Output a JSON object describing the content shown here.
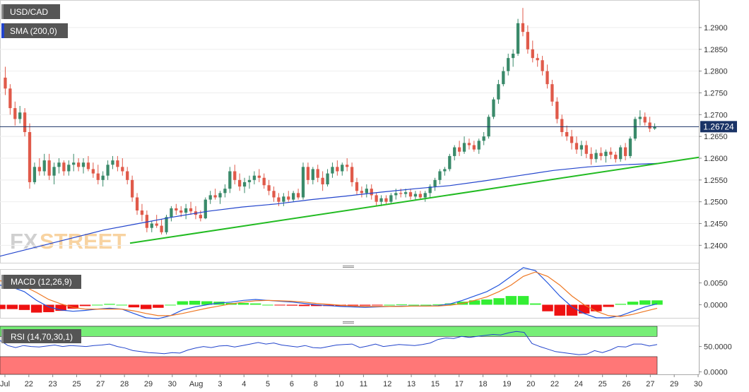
{
  "instrument": "USD/CAD",
  "indicators": {
    "sma": "SMA (200,0)",
    "macd": "MACD (12,26,9)",
    "rsi": "RSI (14,70,30,1)"
  },
  "watermark": {
    "fx": "FX",
    "street": "STREET"
  },
  "last_price": "1.26724",
  "colors": {
    "bull": "#3a8a6a",
    "bear": "#e05a4a",
    "sma": "#2244cc",
    "trend": "#22bb22",
    "macd_line": "#2255dd",
    "signal_line": "#ee7722",
    "hist_pos": "#33ee33",
    "hist_neg": "#ee1111",
    "rsi_over": "#77ee77",
    "rsi_under": "#ff7777"
  },
  "chart_data": [
    {
      "type": "candlestick",
      "x_ticks": [
        "Jul",
        "22",
        "23",
        "25",
        "27",
        "28",
        "29",
        "30",
        "Aug",
        "3",
        "4",
        "5",
        "6",
        "8",
        "10",
        "11",
        "12",
        "13",
        "15",
        "17",
        "18",
        "19",
        "20",
        "22",
        "24",
        "25",
        "26",
        "27",
        "29",
        "30"
      ],
      "y_ticks": [
        "1.2900",
        "1.2850",
        "1.2800",
        "1.2750",
        "1.2700",
        "1.2650",
        "1.2600",
        "1.2550",
        "1.2500",
        "1.2450",
        "1.2400"
      ],
      "ylim": [
        1.236,
        1.296
      ],
      "ohlc": [
        [
          1.2785,
          1.281,
          1.2745,
          1.276
        ],
        [
          1.276,
          1.277,
          1.27,
          1.2715
        ],
        [
          1.2715,
          1.273,
          1.2675,
          1.269
        ],
        [
          1.269,
          1.272,
          1.268,
          1.2705
        ],
        [
          1.2705,
          1.2715,
          1.265,
          1.266
        ],
        [
          1.266,
          1.268,
          1.253,
          1.2545
        ],
        [
          1.2545,
          1.259,
          1.254,
          1.258
        ],
        [
          1.258,
          1.26,
          1.256,
          1.257
        ],
        [
          1.257,
          1.261,
          1.256,
          1.2595
        ],
        [
          1.2595,
          1.261,
          1.255,
          1.256
        ],
        [
          1.256,
          1.259,
          1.254,
          1.258
        ],
        [
          1.258,
          1.26,
          1.2565,
          1.259
        ],
        [
          1.259,
          1.2595,
          1.256,
          1.257
        ],
        [
          1.257,
          1.2595,
          1.256,
          1.2585
        ],
        [
          1.2585,
          1.261,
          1.257,
          1.259
        ],
        [
          1.259,
          1.26,
          1.257,
          1.258
        ],
        [
          1.258,
          1.26,
          1.2565,
          1.259
        ],
        [
          1.259,
          1.2605,
          1.257,
          1.2575
        ],
        [
          1.2575,
          1.259,
          1.2555,
          1.2565
        ],
        [
          1.2565,
          1.2585,
          1.254,
          1.255
        ],
        [
          1.255,
          1.257,
          1.2535,
          1.256
        ],
        [
          1.256,
          1.2595,
          1.255,
          1.2585
        ],
        [
          1.2585,
          1.2605,
          1.2575,
          1.2595
        ],
        [
          1.2595,
          1.2605,
          1.257,
          1.258
        ],
        [
          1.258,
          1.26,
          1.256,
          1.257
        ],
        [
          1.257,
          1.258,
          1.254,
          1.255
        ],
        [
          1.255,
          1.256,
          1.25,
          1.251
        ],
        [
          1.251,
          1.252,
          1.247,
          1.248
        ],
        [
          1.248,
          1.2495,
          1.2455,
          1.247
        ],
        [
          1.247,
          1.248,
          1.243,
          1.244
        ],
        [
          1.244,
          1.2455,
          1.243,
          1.245
        ],
        [
          1.245,
          1.247,
          1.244,
          1.2445
        ],
        [
          1.2445,
          1.246,
          1.2425,
          1.243
        ],
        [
          1.243,
          1.247,
          1.2425,
          1.2465
        ],
        [
          1.2465,
          1.249,
          1.2455,
          1.2485
        ],
        [
          1.2485,
          1.2495,
          1.247,
          1.248
        ],
        [
          1.248,
          1.249,
          1.2465,
          1.2475
        ],
        [
          1.2475,
          1.2495,
          1.246,
          1.2485
        ],
        [
          1.2485,
          1.25,
          1.247,
          1.2478
        ],
        [
          1.2478,
          1.249,
          1.246,
          1.247
        ],
        [
          1.247,
          1.248,
          1.2455,
          1.2462
        ],
        [
          1.2462,
          1.251,
          1.246,
          1.2505
        ],
        [
          1.2505,
          1.2525,
          1.2495,
          1.2515
        ],
        [
          1.2515,
          1.253,
          1.2505,
          1.251
        ],
        [
          1.251,
          1.2525,
          1.2495,
          1.252
        ],
        [
          1.252,
          1.254,
          1.251,
          1.253
        ],
        [
          1.253,
          1.258,
          1.252,
          1.257
        ],
        [
          1.257,
          1.2585,
          1.254,
          1.255
        ],
        [
          1.255,
          1.2565,
          1.2525,
          1.2535
        ],
        [
          1.2535,
          1.2555,
          1.252,
          1.2545
        ],
        [
          1.2545,
          1.256,
          1.253,
          1.255
        ],
        [
          1.255,
          1.257,
          1.254,
          1.256
        ],
        [
          1.256,
          1.2575,
          1.2545,
          1.2555
        ],
        [
          1.2555,
          1.2565,
          1.253,
          1.2538
        ],
        [
          1.2538,
          1.255,
          1.2515,
          1.2525
        ],
        [
          1.2525,
          1.2535,
          1.25,
          1.251
        ],
        [
          1.251,
          1.252,
          1.249,
          1.25
        ],
        [
          1.25,
          1.252,
          1.249,
          1.2512
        ],
        [
          1.2512,
          1.2525,
          1.25,
          1.2505
        ],
        [
          1.2505,
          1.2525,
          1.25,
          1.252
        ],
        [
          1.252,
          1.253,
          1.2505,
          1.251
        ],
        [
          1.251,
          1.259,
          1.2505,
          1.258
        ],
        [
          1.258,
          1.259,
          1.254,
          1.255
        ],
        [
          1.255,
          1.258,
          1.254,
          1.2575
        ],
        [
          1.2575,
          1.2585,
          1.2545,
          1.2555
        ],
        [
          1.2555,
          1.257,
          1.2525,
          1.254
        ],
        [
          1.254,
          1.2575,
          1.2535,
          1.2565
        ],
        [
          1.2565,
          1.259,
          1.2555,
          1.258
        ],
        [
          1.258,
          1.2595,
          1.256,
          1.257
        ],
        [
          1.257,
          1.259,
          1.256,
          1.2585
        ],
        [
          1.2585,
          1.26,
          1.257,
          1.258
        ],
        [
          1.258,
          1.259,
          1.2535,
          1.2545
        ],
        [
          1.2545,
          1.2555,
          1.2515,
          1.2525
        ],
        [
          1.2525,
          1.2535,
          1.251,
          1.252
        ],
        [
          1.252,
          1.254,
          1.251,
          1.253
        ],
        [
          1.253,
          1.254,
          1.2505,
          1.2515
        ],
        [
          1.2515,
          1.252,
          1.249,
          1.25
        ],
        [
          1.25,
          1.2515,
          1.249,
          1.2508
        ],
        [
          1.2508,
          1.2515,
          1.2495,
          1.25
        ],
        [
          1.25,
          1.252,
          1.2495,
          1.2515
        ],
        [
          1.2515,
          1.253,
          1.2505,
          1.252
        ],
        [
          1.252,
          1.253,
          1.251,
          1.2518
        ],
        [
          1.2518,
          1.253,
          1.251,
          1.2522
        ],
        [
          1.2522,
          1.253,
          1.2505,
          1.2512
        ],
        [
          1.2512,
          1.2525,
          1.2505,
          1.2518
        ],
        [
          1.2518,
          1.2525,
          1.2505,
          1.251
        ],
        [
          1.251,
          1.2525,
          1.25,
          1.252
        ],
        [
          1.252,
          1.254,
          1.251,
          1.2535
        ],
        [
          1.2535,
          1.2555,
          1.2525,
          1.255
        ],
        [
          1.255,
          1.2575,
          1.254,
          1.257
        ],
        [
          1.257,
          1.258,
          1.256,
          1.2575
        ],
        [
          1.2575,
          1.261,
          1.257,
          1.2605
        ],
        [
          1.2605,
          1.263,
          1.2595,
          1.2625
        ],
        [
          1.2625,
          1.264,
          1.2605,
          1.2615
        ],
        [
          1.2615,
          1.265,
          1.261,
          1.2635
        ],
        [
          1.2635,
          1.2645,
          1.262,
          1.263
        ],
        [
          1.263,
          1.264,
          1.2615,
          1.262
        ],
        [
          1.262,
          1.2645,
          1.261,
          1.264
        ],
        [
          1.264,
          1.266,
          1.263,
          1.265
        ],
        [
          1.265,
          1.27,
          1.2645,
          1.2695
        ],
        [
          1.2695,
          1.274,
          1.269,
          1.2735
        ],
        [
          1.2735,
          1.278,
          1.2725,
          1.277
        ],
        [
          1.277,
          1.281,
          1.2765,
          1.28
        ],
        [
          1.28,
          1.284,
          1.279,
          1.283
        ],
        [
          1.283,
          1.285,
          1.281,
          1.284
        ],
        [
          1.284,
          1.292,
          1.2835,
          1.291
        ],
        [
          1.291,
          1.2945,
          1.288,
          1.289
        ],
        [
          1.289,
          1.2905,
          1.284,
          1.285
        ],
        [
          1.285,
          1.287,
          1.282,
          1.283
        ],
        [
          1.283,
          1.284,
          1.281,
          1.2825
        ],
        [
          1.2825,
          1.2835,
          1.279,
          1.28
        ],
        [
          1.28,
          1.2815,
          1.276,
          1.277
        ],
        [
          1.277,
          1.278,
          1.272,
          1.273
        ],
        [
          1.273,
          1.274,
          1.268,
          1.269
        ],
        [
          1.269,
          1.27,
          1.265,
          1.266
        ],
        [
          1.266,
          1.2675,
          1.264,
          1.265
        ],
        [
          1.265,
          1.2665,
          1.262,
          1.2635
        ],
        [
          1.2635,
          1.265,
          1.261,
          1.262
        ],
        [
          1.262,
          1.264,
          1.2605,
          1.263
        ],
        [
          1.263,
          1.264,
          1.26,
          1.261
        ],
        [
          1.261,
          1.2625,
          1.2585,
          1.2598
        ],
        [
          1.2598,
          1.262,
          1.259,
          1.2612
        ],
        [
          1.2612,
          1.2625,
          1.2595,
          1.2605
        ],
        [
          1.2605,
          1.262,
          1.259,
          1.2615
        ],
        [
          1.2615,
          1.2625,
          1.2598,
          1.2608
        ],
        [
          1.2608,
          1.2615,
          1.259,
          1.2598
        ],
        [
          1.2598,
          1.263,
          1.2592,
          1.2625
        ],
        [
          1.2625,
          1.2635,
          1.2595,
          1.2605
        ],
        [
          1.2605,
          1.265,
          1.26,
          1.2645
        ],
        [
          1.2645,
          1.2695,
          1.264,
          1.269
        ],
        [
          1.269,
          1.271,
          1.2675,
          1.2695
        ],
        [
          1.2695,
          1.2705,
          1.2675,
          1.2682
        ],
        [
          1.2682,
          1.2695,
          1.266,
          1.2668
        ],
        [
          1.2668,
          1.268,
          1.2665,
          1.2672
        ]
      ],
      "sma_200": [
        1.2375,
        1.2395,
        1.2415,
        1.2435,
        1.245,
        1.2465,
        1.2478,
        1.2488,
        1.2495,
        1.2505,
        1.2513,
        1.2522,
        1.253,
        1.2537,
        1.2548,
        1.256,
        1.2572,
        1.258,
        1.2585,
        1.2588
      ],
      "trendline": {
        "from": 1.2405,
        "to": 1.2602
      },
      "last_price": 1.26724
    },
    {
      "type": "macd",
      "y_ticks": [
        "0.0050",
        "0.0000"
      ],
      "ylim": [
        -0.003,
        0.008
      ],
      "macd": [
        0.0045,
        0.004,
        0.003,
        0.001,
        -0.0005,
        -0.0012,
        -0.0015,
        -0.0013,
        -0.001,
        -0.0008,
        -0.001,
        -0.002,
        -0.003,
        -0.0032,
        -0.0025,
        -0.0012,
        -0.0005,
        0.0,
        0.0004,
        0.0006,
        0.001,
        0.0012,
        0.001,
        0.0008,
        0.0006,
        0.0003,
        0.0,
        -0.0002,
        -0.0004,
        -0.0005,
        -0.0006,
        -0.0005,
        -0.0004,
        -0.0003,
        -0.0003,
        -0.0003,
        -0.0002,
        0.0002,
        0.001,
        0.002,
        0.003,
        0.0045,
        0.0065,
        0.0085,
        0.0078,
        0.005,
        0.002,
        -0.0005,
        -0.002,
        -0.003,
        -0.003,
        -0.0025,
        -0.0015,
        -0.0005,
        0.0002
      ],
      "signal": [
        0.0055,
        0.005,
        0.0042,
        0.0028,
        0.0012,
        0.0002,
        -0.0006,
        -0.001,
        -0.001,
        -0.001,
        -0.001,
        -0.0014,
        -0.002,
        -0.0025,
        -0.0025,
        -0.002,
        -0.0014,
        -0.0008,
        -0.0003,
        0.0002,
        0.0006,
        0.0009,
        0.001,
        0.0009,
        0.0008,
        0.0006,
        0.0003,
        0.0001,
        -0.0001,
        -0.0003,
        -0.0004,
        -0.0004,
        -0.0004,
        -0.0004,
        -0.0003,
        -0.0003,
        -0.0003,
        -0.0001,
        0.0003,
        0.001,
        0.0018,
        0.003,
        0.0045,
        0.0065,
        0.0075,
        0.0065,
        0.0045,
        0.002,
        0.0,
        -0.0015,
        -0.0025,
        -0.0027,
        -0.0022,
        -0.0015,
        -0.0008
      ]
    },
    {
      "type": "rsi",
      "y_ticks": [
        "50.0000",
        "0.0000"
      ],
      "overbought": 70,
      "oversold": 30,
      "ylim": [
        -5,
        90
      ],
      "values": [
        62,
        52,
        48,
        52,
        50,
        49,
        51,
        53,
        50,
        52,
        51,
        50,
        52,
        53,
        55,
        50,
        47,
        42,
        40,
        38,
        37,
        36,
        38,
        37,
        43,
        47,
        50,
        48,
        51,
        52,
        49,
        52,
        55,
        58,
        55,
        57,
        53,
        51,
        49,
        52,
        48,
        47,
        50,
        53,
        54,
        55,
        48,
        51,
        55,
        50,
        52,
        54,
        53,
        52,
        54,
        57,
        64,
        67,
        66,
        70,
        68,
        70,
        72,
        74,
        73,
        77,
        80,
        78,
        56,
        50,
        45,
        40,
        38,
        36,
        34,
        35,
        42,
        38,
        43,
        50,
        49,
        55,
        55,
        51,
        54
      ]
    }
  ]
}
